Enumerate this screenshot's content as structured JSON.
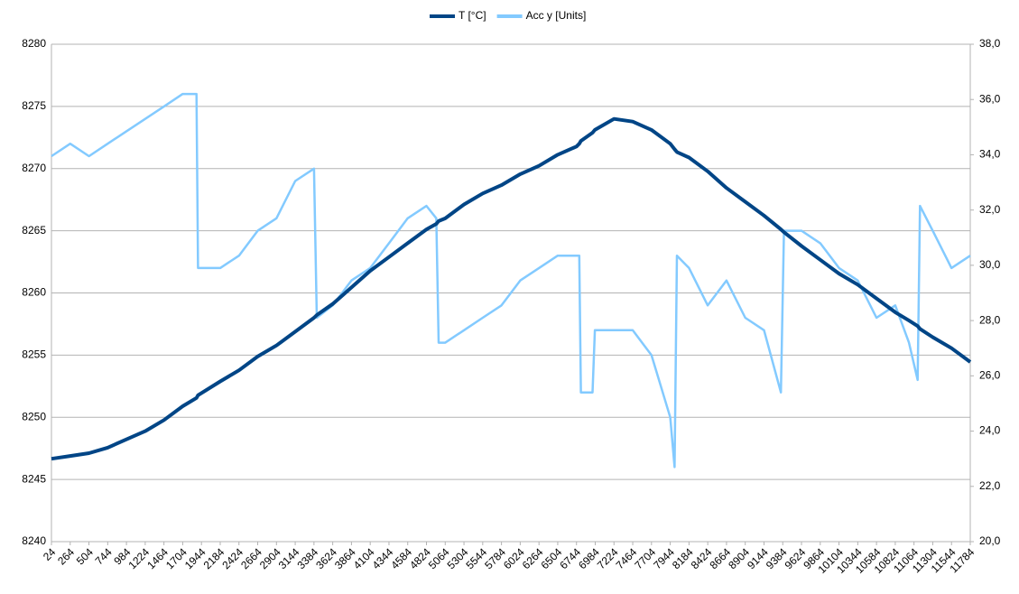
{
  "chart_data": {
    "type": "line",
    "x": [
      24,
      264,
      504,
      744,
      984,
      1224,
      1464,
      1704,
      1880,
      1900,
      2184,
      2424,
      2664,
      2904,
      3144,
      3384,
      3420,
      3624,
      3864,
      4104,
      4344,
      4584,
      4824,
      4950,
      4980,
      5064,
      5304,
      5544,
      5784,
      6024,
      6264,
      6504,
      6744,
      6780,
      6800,
      6950,
      6980,
      7224,
      7464,
      7704,
      7944,
      8000,
      8030,
      8184,
      8424,
      8664,
      8904,
      9144,
      9360,
      9400,
      9624,
      9864,
      10104,
      10344,
      10584,
      10824,
      11000,
      11110,
      11140,
      11304,
      11544,
      11784
    ],
    "series": [
      {
        "name": "T [°C]",
        "color": "#004586",
        "axis": "y2",
        "values": [
          23.0,
          23.1,
          23.2,
          23.4,
          23.7,
          24.0,
          24.4,
          24.9,
          25.2,
          25.3,
          25.8,
          26.2,
          26.7,
          27.1,
          27.6,
          28.1,
          28.2,
          28.6,
          29.2,
          29.8,
          30.3,
          30.8,
          31.3,
          31.5,
          31.6,
          31.7,
          32.2,
          32.6,
          32.9,
          33.3,
          33.6,
          34.0,
          34.3,
          34.4,
          34.5,
          34.8,
          34.9,
          35.3,
          35.2,
          34.9,
          34.4,
          34.2,
          34.1,
          33.9,
          33.4,
          32.8,
          32.3,
          31.8,
          31.3,
          31.2,
          30.7,
          30.2,
          29.7,
          29.3,
          28.8,
          28.3,
          28.0,
          27.8,
          27.7,
          27.4,
          27.0,
          26.5
        ]
      },
      {
        "name": "Acc y [Units]",
        "color": "#83caff",
        "values": [
          8271,
          8272,
          8271,
          8272,
          8273,
          8274,
          8275,
          8276,
          8276,
          8262,
          8262,
          8263,
          8265,
          8266,
          8269,
          8270,
          8258,
          8259,
          8261,
          8262,
          8264,
          8266,
          8267,
          8266,
          8256,
          8256,
          8257,
          8258,
          8259,
          8261,
          8262,
          8263,
          8263,
          8263,
          8252,
          8252,
          8257,
          8257,
          8257,
          8255,
          8250,
          8246,
          8263,
          8262,
          8259,
          8261,
          8258,
          8257,
          8252,
          8265,
          8265,
          8264,
          8262,
          8261,
          8258,
          8259,
          8256,
          8253,
          8267,
          8265,
          8262,
          8263
        ]
      }
    ],
    "xlim": [
      24,
      11784
    ],
    "xticks": [
      24,
      264,
      504,
      744,
      984,
      1224,
      1464,
      1704,
      1944,
      2184,
      2424,
      2664,
      2904,
      3144,
      3384,
      3624,
      3864,
      4104,
      4344,
      4584,
      4824,
      5064,
      5304,
      5544,
      5784,
      6024,
      6264,
      6504,
      6744,
      6984,
      7224,
      7464,
      7704,
      7944,
      8184,
      8424,
      8664,
      8904,
      9144,
      9384,
      9624,
      9864,
      10104,
      10344,
      10584,
      10824,
      11064,
      11304,
      11544,
      11784
    ],
    "ylim": [
      8240,
      8280
    ],
    "yticks": [
      8240,
      8245,
      8250,
      8255,
      8260,
      8265,
      8270,
      8275,
      8280
    ],
    "y2lim": [
      20,
      38
    ],
    "y2ticks": [
      {
        "value": 20,
        "label": "20,0"
      },
      {
        "value": 22,
        "label": "22,0"
      },
      {
        "value": 24,
        "label": "24,0"
      },
      {
        "value": 26,
        "label": "26,0"
      },
      {
        "value": 28,
        "label": "28,0"
      },
      {
        "value": 30,
        "label": "30,0"
      },
      {
        "value": 32,
        "label": "32,0"
      },
      {
        "value": 34,
        "label": "34,0"
      },
      {
        "value": 36,
        "label": "36,0"
      },
      {
        "value": 38,
        "label": "38,0"
      }
    ],
    "grid": true,
    "legend": "top"
  }
}
